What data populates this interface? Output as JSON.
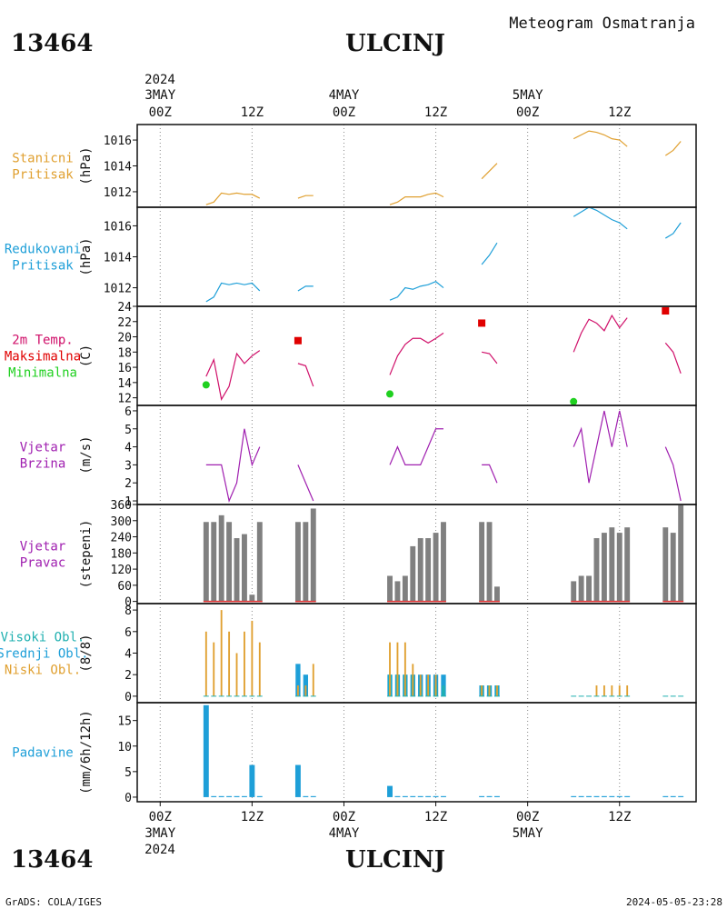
{
  "station_id": "13464",
  "station_name": "ULCINJ",
  "subtitle": "Meteogram Osmatranja",
  "footer_left": "GrADS: COLA/IGES",
  "footer_right": "2024-05-05-23:28",
  "top_axis": {
    "year": "2024",
    "ticks": [
      {
        "hour": 0,
        "line1": "3MAY",
        "line2": "00Z"
      },
      {
        "hour": 12,
        "line1": "",
        "line2": "12Z"
      },
      {
        "hour": 24,
        "line1": "4MAY",
        "line2": "00Z"
      },
      {
        "hour": 36,
        "line1": "",
        "line2": "12Z"
      },
      {
        "hour": 48,
        "line1": "5MAY",
        "line2": "00Z"
      },
      {
        "hour": 60,
        "line1": "",
        "line2": "12Z"
      }
    ]
  },
  "bottom_axis": {
    "year": "2024",
    "ticks": [
      {
        "hour": 0,
        "line1": "00Z",
        "line2": "3MAY"
      },
      {
        "hour": 12,
        "line1": "12Z",
        "line2": ""
      },
      {
        "hour": 24,
        "line1": "00Z",
        "line2": "4MAY"
      },
      {
        "hour": 36,
        "line1": "12Z",
        "line2": ""
      },
      {
        "hour": 48,
        "line1": "00Z",
        "line2": "5MAY"
      },
      {
        "hour": 60,
        "line1": "12Z",
        "line2": ""
      }
    ]
  },
  "colors": {
    "station_pressure": "#e0a030",
    "reduced_pressure": "#1e9fd8",
    "temperature": "#d0106a",
    "tmax": "#e00000",
    "tmin": "#20d020",
    "wind": "#a020b0",
    "wind_dir_bar": "#808080",
    "wind_dir_line": "#e03030",
    "cloud_high": "#20b0b0",
    "cloud_mid": "#1e9fd8",
    "cloud_low": "#e0a030",
    "precip": "#1e9fd8"
  },
  "chart_data": [
    {
      "type": "line",
      "panel": "station_pressure",
      "labels": [
        "Stanicni",
        "Pritisak"
      ],
      "ylabel": "(hPa)",
      "ylim": [
        1010.8,
        1017.2
      ],
      "yticks": [
        1012,
        1014,
        1016
      ],
      "segments": [
        {
          "x": [
            6,
            7,
            8,
            9,
            10,
            11,
            12,
            13
          ],
          "y": [
            1011.0,
            1011.2,
            1011.9,
            1011.8,
            1011.9,
            1011.8,
            1011.8,
            1011.5
          ]
        },
        {
          "x": [
            18,
            19,
            20
          ],
          "y": [
            1011.5,
            1011.7,
            1011.7
          ]
        },
        {
          "x": [
            30,
            31,
            32,
            33,
            34,
            35,
            36,
            37
          ],
          "y": [
            1011.0,
            1011.2,
            1011.6,
            1011.6,
            1011.6,
            1011.8,
            1011.9,
            1011.6
          ]
        },
        {
          "x": [
            42,
            43,
            44
          ],
          "y": [
            1013.0,
            1013.6,
            1014.2
          ]
        },
        {
          "x": [
            54,
            55,
            56,
            57,
            58,
            59,
            60,
            61
          ],
          "y": [
            1016.1,
            1016.4,
            1016.7,
            1016.6,
            1016.4,
            1016.1,
            1016.0,
            1015.5
          ]
        },
        {
          "x": [
            66,
            67,
            68
          ],
          "y": [
            1014.8,
            1015.2,
            1015.9
          ]
        }
      ]
    },
    {
      "type": "line",
      "panel": "reduced_pressure",
      "labels": [
        "Redukovani",
        "Pritisak"
      ],
      "ylabel": "(hPa)",
      "ylim": [
        1010.8,
        1017.2
      ],
      "yticks": [
        1012,
        1014,
        1016
      ],
      "segments": [
        {
          "x": [
            6,
            7,
            8,
            9,
            10,
            11,
            12,
            13
          ],
          "y": [
            1011.1,
            1011.4,
            1012.3,
            1012.2,
            1012.3,
            1012.2,
            1012.3,
            1011.8
          ]
        },
        {
          "x": [
            18,
            19,
            20
          ],
          "y": [
            1011.8,
            1012.1,
            1012.1
          ]
        },
        {
          "x": [
            30,
            31,
            32,
            33,
            34,
            35,
            36,
            37
          ],
          "y": [
            1011.2,
            1011.4,
            1012.0,
            1011.9,
            1012.1,
            1012.2,
            1012.4,
            1012.0
          ]
        },
        {
          "x": [
            42,
            43,
            44
          ],
          "y": [
            1013.5,
            1014.1,
            1014.9
          ]
        },
        {
          "x": [
            54,
            55,
            56,
            57,
            58,
            59,
            60,
            61
          ],
          "y": [
            1016.6,
            1016.9,
            1017.2,
            1017.0,
            1016.7,
            1016.4,
            1016.2,
            1015.8
          ]
        },
        {
          "x": [
            66,
            67,
            68
          ],
          "y": [
            1015.2,
            1015.5,
            1016.2
          ]
        }
      ]
    },
    {
      "type": "line",
      "panel": "temperature",
      "labels": [
        "2m Temp.",
        "Maksimalna",
        "Minimalna"
      ],
      "ylabel": "(C)",
      "ylim": [
        11,
        24
      ],
      "yticks": [
        12,
        14,
        16,
        18,
        20,
        22,
        24
      ],
      "segments": [
        {
          "x": [
            6,
            7,
            8,
            9,
            10,
            11,
            12,
            13
          ],
          "y": [
            14.8,
            17.0,
            11.8,
            13.5,
            17.8,
            16.5,
            17.5,
            18.2
          ]
        },
        {
          "x": [
            18,
            19,
            20
          ],
          "y": [
            16.5,
            16.2,
            13.5
          ]
        },
        {
          "x": [
            30,
            31,
            32,
            33,
            34,
            35,
            36,
            37
          ],
          "y": [
            15.0,
            17.5,
            19.0,
            19.8,
            19.8,
            19.2,
            19.8,
            20.5
          ]
        },
        {
          "x": [
            42,
            43,
            44
          ],
          "y": [
            18.0,
            17.8,
            16.5
          ]
        },
        {
          "x": [
            54,
            55,
            56,
            57,
            58,
            59,
            60,
            61
          ],
          "y": [
            18.0,
            20.5,
            22.3,
            21.8,
            20.8,
            22.8,
            21.2,
            22.5
          ]
        },
        {
          "x": [
            66,
            67,
            68
          ],
          "y": [
            19.2,
            18.0,
            15.2
          ]
        }
      ],
      "tmax": [
        {
          "x": 18,
          "y": 19.5
        },
        {
          "x": 42,
          "y": 21.8
        },
        {
          "x": 66,
          "y": 23.4
        }
      ],
      "tmin": [
        {
          "x": 6,
          "y": 13.7
        },
        {
          "x": 30,
          "y": 12.5
        },
        {
          "x": 54,
          "y": 11.5
        }
      ]
    },
    {
      "type": "line",
      "panel": "wind_speed",
      "labels": [
        "Vjetar",
        "Brzina"
      ],
      "ylabel": "(m/s)",
      "ylim": [
        0.8,
        6.3
      ],
      "yticks": [
        1,
        2,
        3,
        4,
        5,
        6
      ],
      "segments": [
        {
          "x": [
            6,
            7,
            8,
            9,
            10,
            11,
            12,
            13
          ],
          "y": [
            3,
            3,
            3,
            1,
            2,
            5,
            3,
            4
          ]
        },
        {
          "x": [
            18,
            19,
            20
          ],
          "y": [
            3,
            2,
            1
          ]
        },
        {
          "x": [
            30,
            31,
            32,
            33,
            34,
            35,
            36,
            37
          ],
          "y": [
            3,
            4,
            3,
            3,
            3,
            4,
            5,
            5
          ]
        },
        {
          "x": [
            42,
            43,
            44
          ],
          "y": [
            3,
            3,
            2
          ]
        },
        {
          "x": [
            54,
            55,
            56,
            57,
            58,
            59,
            60,
            61
          ],
          "y": [
            4,
            5,
            2,
            4,
            6,
            4,
            6,
            4
          ]
        },
        {
          "x": [
            66,
            67,
            68
          ],
          "y": [
            4,
            3,
            1
          ]
        }
      ]
    },
    {
      "type": "bar",
      "panel": "wind_direction",
      "labels": [
        "Vjetar",
        "Pravac"
      ],
      "ylabel": "(stepeni)",
      "ylim": [
        -8,
        360
      ],
      "yticks": [
        0,
        60,
        120,
        180,
        240,
        300,
        360
      ],
      "x": [
        6,
        7,
        8,
        9,
        10,
        11,
        12,
        13,
        18,
        19,
        20,
        30,
        31,
        32,
        33,
        34,
        35,
        36,
        37,
        42,
        43,
        44,
        54,
        55,
        56,
        57,
        58,
        59,
        60,
        61,
        66,
        67,
        68
      ],
      "values": [
        295,
        295,
        320,
        295,
        235,
        250,
        25,
        295,
        295,
        295,
        345,
        95,
        75,
        95,
        205,
        235,
        235,
        255,
        295,
        295,
        295,
        55,
        75,
        95,
        95,
        235,
        255,
        275,
        255,
        275,
        275,
        255,
        365
      ]
    },
    {
      "type": "bar",
      "panel": "clouds",
      "labels": [
        "Visoki Obl.",
        "Srednji Obl.",
        "Niski Obl."
      ],
      "ylabel": "(8/8)",
      "ylim": [
        -0.6,
        8.6
      ],
      "yticks": [
        0,
        2,
        4,
        6,
        8
      ],
      "x": [
        6,
        7,
        8,
        9,
        10,
        11,
        12,
        13,
        18,
        19,
        20,
        30,
        31,
        32,
        33,
        34,
        35,
        36,
        37,
        42,
        43,
        44,
        54,
        55,
        56,
        57,
        58,
        59,
        60,
        61,
        66,
        67,
        68
      ],
      "series": [
        {
          "name": "Visoki Obl.",
          "values": [
            0,
            0,
            0,
            0,
            0,
            0,
            0,
            0,
            0,
            0,
            0,
            2,
            2,
            2,
            2,
            1,
            1,
            1,
            1,
            1,
            1,
            1,
            0,
            0,
            0,
            0,
            0,
            0,
            0,
            0,
            0,
            0,
            0
          ]
        },
        {
          "name": "Srednji Obl.",
          "values": [
            0,
            0,
            0,
            0,
            0,
            0,
            0,
            0,
            3,
            2,
            0,
            2,
            2,
            2,
            2,
            2,
            2,
            2,
            2,
            1,
            1,
            1,
            0,
            0,
            0,
            0,
            0,
            0,
            0,
            0,
            0,
            0,
            0
          ]
        },
        {
          "name": "Niski Obl.",
          "values": [
            6,
            5,
            8,
            6,
            4,
            6,
            7,
            5,
            1,
            1,
            3,
            5,
            5,
            5,
            3,
            2,
            2,
            2,
            0,
            1,
            1,
            1,
            0,
            0,
            0,
            1,
            1,
            1,
            1,
            1,
            0,
            0,
            0
          ]
        }
      ]
    },
    {
      "type": "bar",
      "panel": "precipitation",
      "labels": [
        "Padavine"
      ],
      "ylabel": "(mm/6h/12h)",
      "ylim": [
        -0.9,
        18.5
      ],
      "yticks": [
        0,
        5,
        10,
        15
      ],
      "x": [
        6,
        7,
        8,
        9,
        10,
        11,
        12,
        13,
        18,
        19,
        20,
        30,
        31,
        32,
        33,
        34,
        35,
        36,
        37,
        42,
        43,
        44,
        54,
        55,
        56,
        57,
        58,
        59,
        60,
        61,
        66,
        67,
        68
      ],
      "values": [
        18,
        0.2,
        0.2,
        0.2,
        0.2,
        0.2,
        6.3,
        0.2,
        6.3,
        0.2,
        0.2,
        2.2,
        0.2,
        0.2,
        0.2,
        0.2,
        0.2,
        0.2,
        0.2,
        0.2,
        0.2,
        0.2,
        0.2,
        0.2,
        0.2,
        0.2,
        0.2,
        0.2,
        0.2,
        0.2,
        0.2,
        0.2,
        0.2
      ]
    }
  ]
}
